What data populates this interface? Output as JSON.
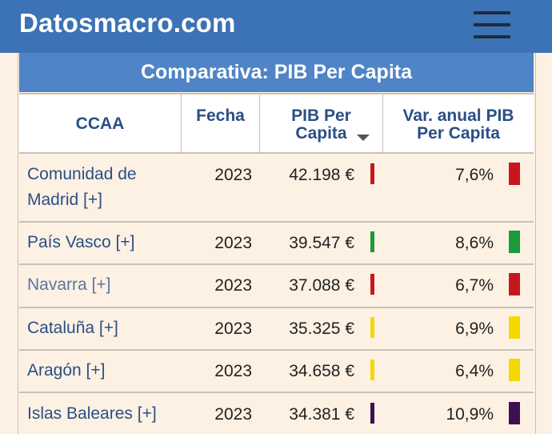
{
  "header": {
    "brand": "Datosmacro.com"
  },
  "table": {
    "title": "Comparativa: PIB Per Capita",
    "columns": {
      "ccaa": "CCAA",
      "fecha": "Fecha",
      "pib_l1": "PIB Per",
      "pib_l2": "Capita",
      "var_l1": "Var. anual PIB",
      "var_l2": "Per Capita"
    },
    "rows": [
      {
        "ccaa_l1": "Comunidad de",
        "ccaa_l2": "Madrid [+]",
        "fecha": "2023",
        "pib": "42.198 €",
        "var": "7,6%",
        "color": "#c8161e"
      },
      {
        "ccaa_l1": "País Vasco [+]",
        "fecha": "2023",
        "pib": "39.547 €",
        "var": "8,6%",
        "color": "#1a9a3a"
      },
      {
        "ccaa_l1": "Navarra [+]",
        "fecha": "2023",
        "pib": "37.088 €",
        "var": "6,7%",
        "color": "#c8161e"
      },
      {
        "ccaa_l1": "Cataluña [+]",
        "fecha": "2023",
        "pib": "35.325 €",
        "var": "6,9%",
        "color": "#f5d800"
      },
      {
        "ccaa_l1": "Aragón [+]",
        "fecha": "2023",
        "pib": "34.658 €",
        "var": "6,4%",
        "color": "#f5d800"
      },
      {
        "ccaa_l1": "Islas Baleares [+]",
        "fecha": "2023",
        "pib": "34.381 €",
        "var": "10,9%",
        "color": "#3d1150"
      }
    ]
  },
  "colors": {
    "header_bg": "#3c72b6",
    "title_bg": "#4f84c6",
    "link": "#2a4f86",
    "row_bg": "#fdf1e3"
  }
}
